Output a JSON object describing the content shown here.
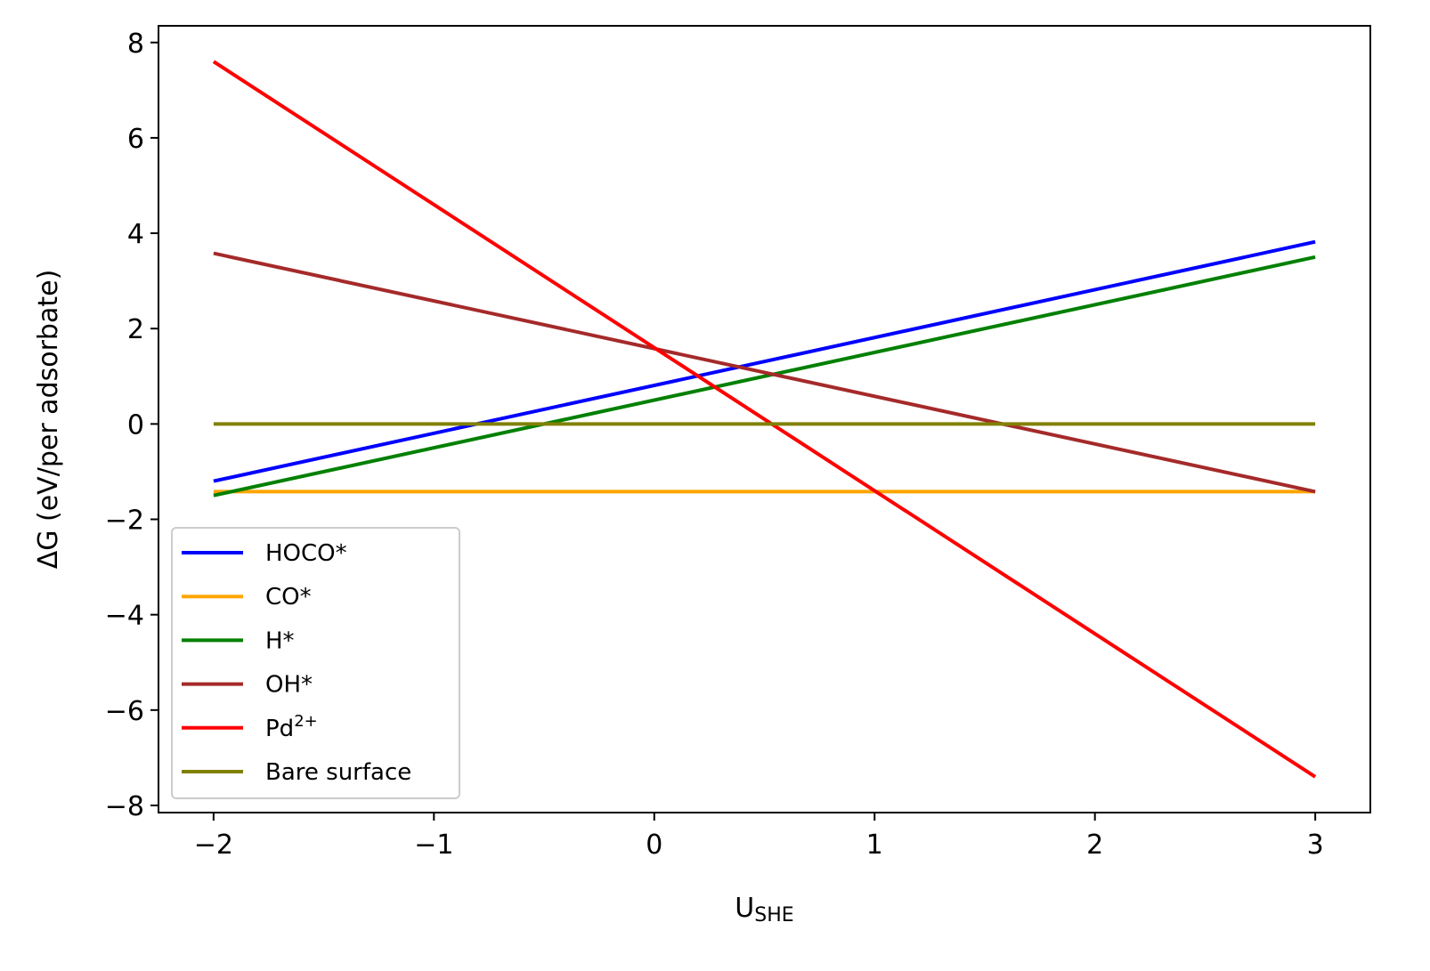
{
  "chart_data": {
    "type": "line",
    "title": "",
    "xlabel": "U",
    "xlabel_sub": "SHE",
    "ylabel": "ΔG (eV/per adsorbate)",
    "xlim": [
      -2.25,
      3.25
    ],
    "ylim": [
      -8.15,
      8.35
    ],
    "xticks": [
      -2,
      -1,
      0,
      1,
      2,
      3
    ],
    "xtick_labels": [
      "−2",
      "−1",
      "0",
      "1",
      "2",
      "3"
    ],
    "yticks": [
      -8,
      -6,
      -4,
      -2,
      0,
      2,
      4,
      6,
      8
    ],
    "ytick_labels": [
      "−8",
      "−6",
      "−4",
      "−2",
      "0",
      "2",
      "4",
      "6",
      "8"
    ],
    "grid": false,
    "legend_position": "lower-left",
    "series": [
      {
        "name": "HOCO*",
        "color": "#0000ff",
        "x": [
          -2,
          3
        ],
        "y": [
          -1.2,
          3.82
        ]
      },
      {
        "name": "CO*",
        "color": "#ffa500",
        "x": [
          -2,
          3
        ],
        "y": [
          -1.42,
          -1.42
        ]
      },
      {
        "name": "H*",
        "color": "#008000",
        "x": [
          -2,
          3
        ],
        "y": [
          -1.5,
          3.5
        ]
      },
      {
        "name": "OH*",
        "color": "#a52a2a",
        "x": [
          -2,
          3
        ],
        "y": [
          3.58,
          -1.42
        ]
      },
      {
        "name": "Pd",
        "name_sup": "2+",
        "color": "#ff0000",
        "x": [
          -2,
          3
        ],
        "y": [
          7.6,
          -7.4
        ]
      },
      {
        "name": "Bare surface",
        "color": "#808000",
        "x": [
          -2,
          3
        ],
        "y": [
          0,
          0
        ]
      }
    ]
  }
}
